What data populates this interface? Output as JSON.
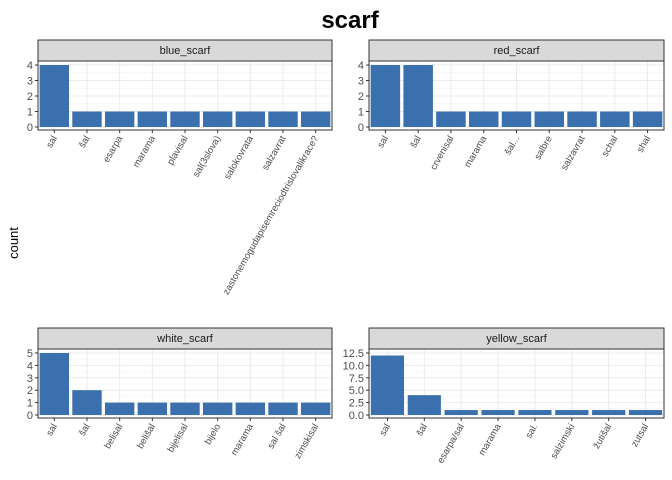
{
  "title": "scarf",
  "ylabel": "count",
  "chart_data": {
    "type": "bar",
    "title": "scarf",
    "ylabel": "count",
    "bar_color": "#3a70ad",
    "strip_fill": "#d9d9d9",
    "grid": true,
    "panels": [
      {
        "name": "blue_scarf",
        "categories": [
          "sal",
          "šal",
          "esarpa",
          "marama",
          "plavisal",
          "sal(3slova)",
          "salokovrata",
          "salzavrat",
          "zastonemogudapisemreciodtrislovalikrace?"
        ],
        "values": [
          4,
          1,
          1,
          1,
          1,
          1,
          1,
          1,
          1
        ],
        "ylim": [
          0,
          4
        ],
        "yticks": [
          "0",
          "1",
          "2",
          "3",
          "4"
        ]
      },
      {
        "name": "red_scarf",
        "categories": [
          "sal",
          "šal",
          "crvenisal",
          "marama",
          "šal...",
          "salbre",
          "salzavrat",
          "schal",
          "shal"
        ],
        "values": [
          4,
          4,
          1,
          1,
          1,
          1,
          1,
          1,
          1
        ],
        "ylim": [
          0,
          4
        ],
        "yticks": [
          "0",
          "1",
          "2",
          "3",
          "4"
        ]
      },
      {
        "name": "white_scarf",
        "categories": [
          "sal",
          "šal",
          "belisal",
          "belišal",
          "bijelisal",
          "bijelo",
          "marama",
          "sal šal",
          "zimskisal"
        ],
        "values": [
          5,
          2,
          1,
          1,
          1,
          1,
          1,
          1,
          1
        ],
        "ylim": [
          0,
          5
        ],
        "yticks": [
          "0",
          "1",
          "2",
          "3",
          "4",
          "5"
        ]
      },
      {
        "name": "yellow_scarf",
        "categories": [
          "sal",
          "šal",
          "esarpa/sal",
          "marama",
          "sal.",
          "salzimski",
          "žutišal",
          "zutsal"
        ],
        "values": [
          12,
          4,
          1,
          1,
          1,
          1,
          1,
          1
        ],
        "ylim": [
          0,
          12.5
        ],
        "yticks": [
          "0.0",
          "2.5",
          "5.0",
          "7.5",
          "10.0",
          "12.5"
        ]
      }
    ]
  }
}
